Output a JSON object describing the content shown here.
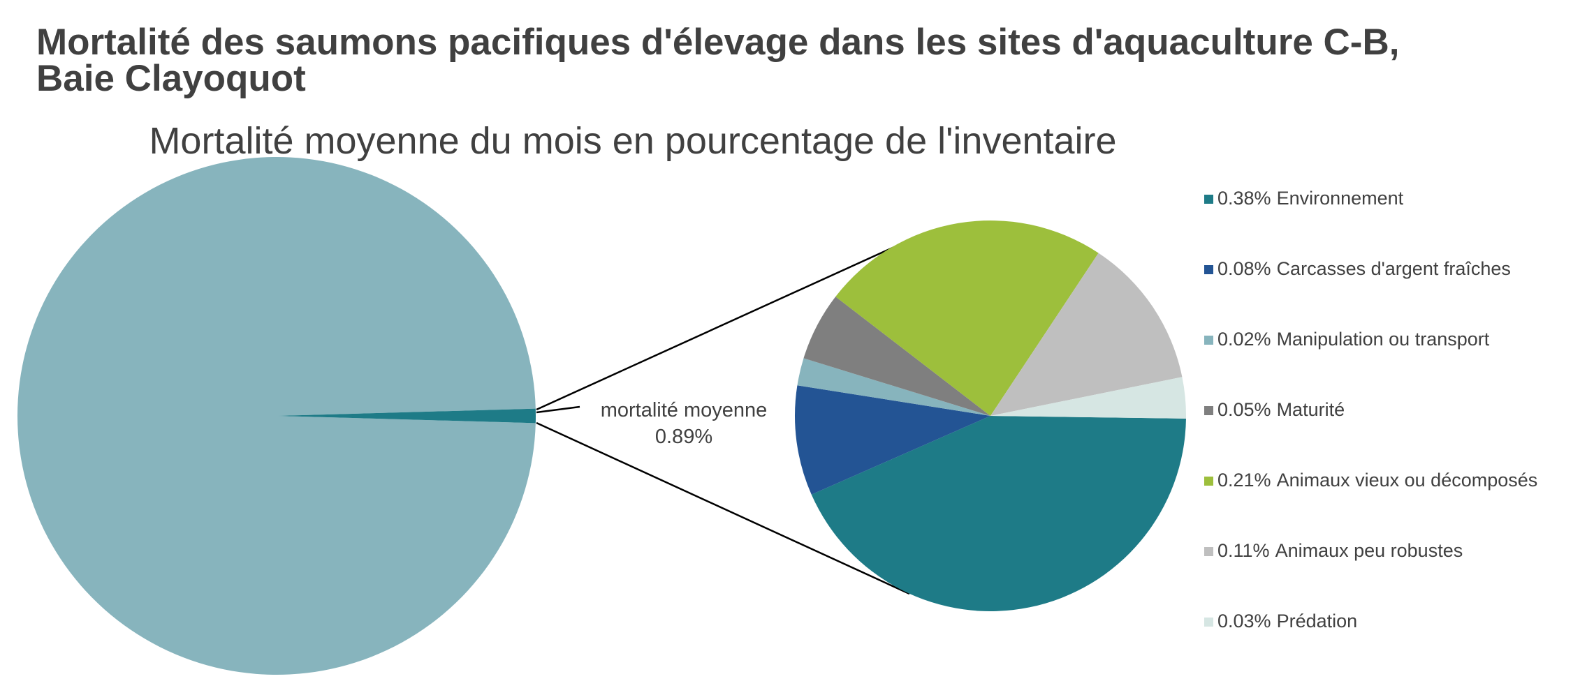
{
  "chart_data": [
    {
      "type": "pie",
      "title": [
        "Mortalité des saumons pacifiques d'élevage dans les sites d'aquaculture C-B,",
        "Baie Clayoquot"
      ],
      "subtitle": "Mortalité moyenne du mois en pourcentage de l'inventaire",
      "categories": [
        null,
        "mortalité moyenne"
      ],
      "values": [
        99.11,
        0.89
      ],
      "value_labels": [
        null,
        "0.89%"
      ],
      "colors": [
        "#87b4bd",
        "#1e7b87"
      ]
    },
    {
      "type": "pie",
      "categories": [
        "Environnement",
        "Carcasses d'argent fraîches",
        "Manipulation ou transport",
        "Maturité",
        "Animaux vieux ou décomposés",
        "Animaux peu robustes",
        "Prédation"
      ],
      "values": [
        0.38,
        0.08,
        0.02,
        0.05,
        0.21,
        0.11,
        0.03
      ],
      "value_labels": [
        "0.38%",
        "0.08%",
        "0.02%",
        "0.05%",
        "0.21%",
        "0.11%",
        "0.03%"
      ],
      "colors": [
        "#1e7b87",
        "#235494",
        "#87b4bd",
        "#7f7f7f",
        "#9dbf3c",
        "#bfbfbf",
        "#d6e6e3"
      ],
      "legend": "right"
    }
  ]
}
